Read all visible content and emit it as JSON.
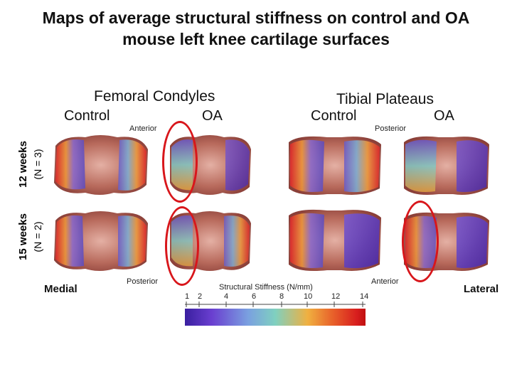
{
  "title": "Maps of average structural stiffness on control and OA mouse left knee cartilage surfaces",
  "groups": {
    "femoral": "Femoral Condyles",
    "tibial": "Tibial Plateaus"
  },
  "columns": {
    "control_fem": "Control",
    "oa_fem": "OA",
    "control_tib": "Control",
    "oa_tib": "OA"
  },
  "rows": {
    "row1_a": "12 weeks",
    "row1_b": "(N = 3)",
    "row2_a": "15 weeks",
    "row2_b": "(N = 2)"
  },
  "orientation": {
    "anterior_top": "Anterior",
    "posterior_top": "Posterior",
    "posterior_bottom": "Posterior",
    "anterior_bottom": "Anterior",
    "medial": "Medial",
    "lateral": "Lateral"
  },
  "colorbar": {
    "title": "Structural Stiffness (N/mm)",
    "ticks": [
      "1",
      "2",
      "4",
      "6",
      "8",
      "10",
      "12",
      "14"
    ],
    "colors": [
      "#3a1fa0",
      "#6a3fd0",
      "#7aa0e0",
      "#7fd0c0",
      "#f0b040",
      "#e8602a",
      "#d81e1e",
      "#c01010"
    ]
  },
  "accent": "#d8161b"
}
